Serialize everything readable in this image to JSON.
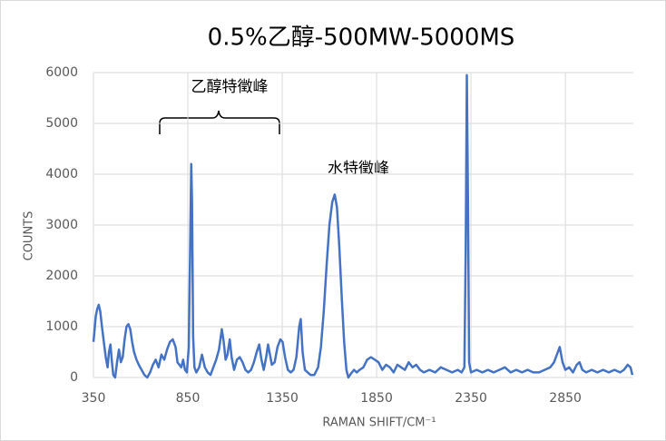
{
  "chart_data": {
    "type": "line",
    "title": "0.5%乙醇-500MW-5000MS",
    "x_label": "RAMAN SHIFT/CM⁻¹",
    "y_label": "COUNTS",
    "annotations": [
      "乙醇特徵峰",
      "水特徵峰"
    ],
    "xlim": [
      350,
      3210
    ],
    "ylim": [
      0,
      6000
    ],
    "xticks": [
      350,
      850,
      1350,
      1850,
      2350,
      2850
    ],
    "yticks": [
      0,
      1000,
      2000,
      3000,
      4000,
      5000,
      6000
    ],
    "grid": true,
    "series": [
      {
        "color": "#4472c4",
        "x": [
          350,
          355,
          362,
          370,
          378,
          386,
          395,
          405,
          415,
          425,
          432,
          440,
          448,
          455,
          465,
          475,
          485,
          495,
          505,
          515,
          525,
          535,
          545,
          555,
          565,
          578,
          590,
          605,
          620,
          635,
          650,
          665,
          680,
          695,
          710,
          725,
          740,
          755,
          770,
          785,
          795,
          805,
          815,
          825,
          835,
          845,
          855,
          862,
          868,
          872,
          878,
          885,
          895,
          910,
          925,
          940,
          955,
          970,
          985,
          1000,
          1015,
          1030,
          1040,
          1050,
          1060,
          1072,
          1082,
          1095,
          1110,
          1125,
          1140,
          1155,
          1170,
          1185,
          1200,
          1215,
          1228,
          1240,
          1252,
          1265,
          1275,
          1285,
          1295,
          1310,
          1325,
          1340,
          1352,
          1365,
          1380,
          1395,
          1410,
          1425,
          1440,
          1448,
          1458,
          1470,
          1485,
          1500,
          1520,
          1540,
          1555,
          1570,
          1585,
          1600,
          1615,
          1628,
          1640,
          1652,
          1665,
          1678,
          1690,
          1700,
          1715,
          1730,
          1745,
          1760,
          1780,
          1800,
          1820,
          1840,
          1860,
          1880,
          1900,
          1920,
          1940,
          1960,
          1980,
          2000,
          2020,
          2040,
          2060,
          2080,
          2100,
          2130,
          2160,
          2190,
          2220,
          2250,
          2280,
          2300,
          2315,
          2322,
          2328,
          2334,
          2340,
          2350,
          2380,
          2410,
          2440,
          2470,
          2500,
          2530,
          2560,
          2590,
          2620,
          2650,
          2680,
          2710,
          2740,
          2770,
          2790,
          2805,
          2820,
          2835,
          2850,
          2870,
          2890,
          2910,
          2925,
          2940,
          2960,
          2990,
          3020,
          3050,
          3080,
          3110,
          3140,
          3160,
          3180,
          3195,
          3205
        ],
        "values": [
          700,
          900,
          1200,
          1350,
          1430,
          1300,
          1000,
          700,
          400,
          200,
          500,
          650,
          300,
          50,
          0,
          300,
          550,
          300,
          400,
          750,
          1000,
          1050,
          950,
          700,
          500,
          350,
          250,
          150,
          50,
          0,
          100,
          250,
          350,
          200,
          450,
          350,
          550,
          700,
          750,
          600,
          300,
          250,
          200,
          350,
          150,
          100,
          600,
          2500,
          4200,
          3500,
          800,
          200,
          100,
          200,
          450,
          200,
          100,
          50,
          200,
          350,
          550,
          950,
          700,
          350,
          450,
          750,
          400,
          150,
          350,
          400,
          300,
          150,
          100,
          150,
          300,
          500,
          650,
          350,
          150,
          400,
          650,
          450,
          250,
          300,
          600,
          750,
          700,
          400,
          150,
          100,
          150,
          400,
          1000,
          1150,
          500,
          150,
          100,
          50,
          50,
          200,
          600,
          1300,
          2200,
          3000,
          3450,
          3600,
          3350,
          2600,
          1600,
          700,
          150,
          0,
          80,
          150,
          100,
          150,
          200,
          350,
          400,
          350,
          300,
          150,
          250,
          200,
          100,
          250,
          200,
          150,
          300,
          200,
          250,
          150,
          100,
          150,
          100,
          200,
          150,
          100,
          150,
          100,
          200,
          2500,
          5950,
          3500,
          300,
          100,
          150,
          100,
          150,
          100,
          150,
          200,
          100,
          150,
          100,
          150,
          100,
          100,
          150,
          200,
          300,
          450,
          600,
          300,
          150,
          200,
          100,
          250,
          300,
          150,
          100,
          150,
          100,
          150,
          100,
          150,
          100,
          150,
          250,
          200,
          50
        ]
      }
    ]
  }
}
